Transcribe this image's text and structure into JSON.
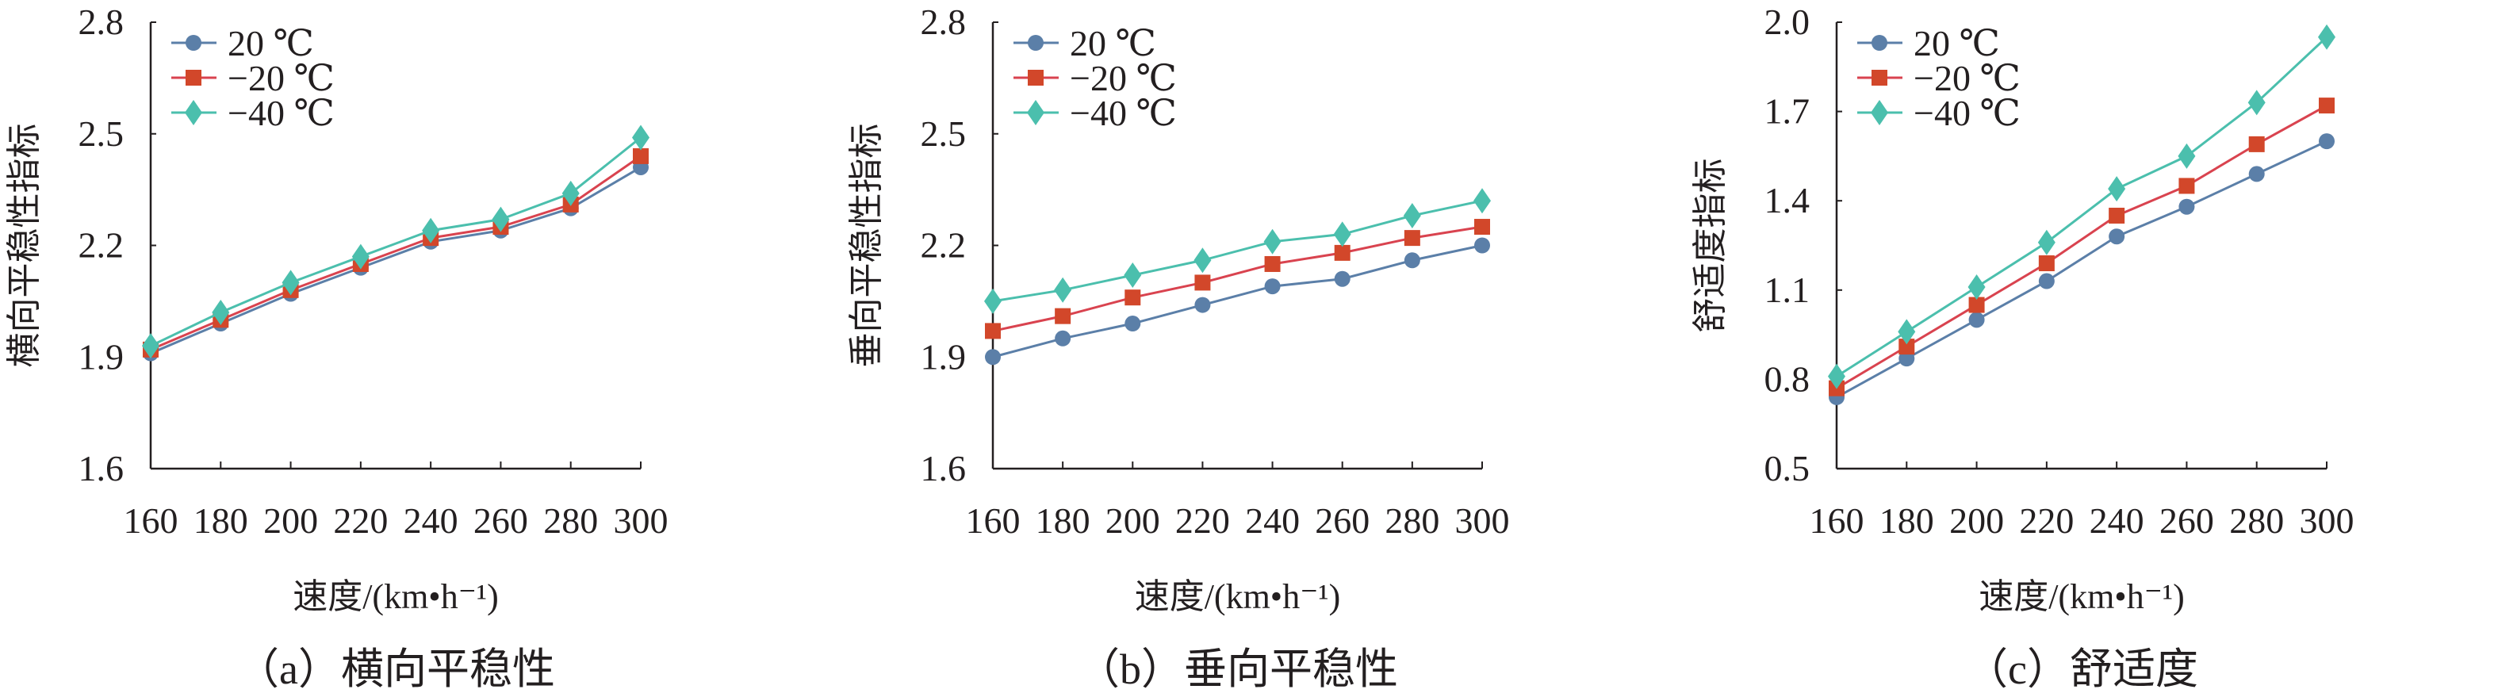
{
  "chart_data": [
    {
      "type": "line",
      "caption": "（a）横向平稳性",
      "xlabel": "速度/(km•h⁻¹)",
      "ylabel": "横向平稳性指标",
      "x": [
        160,
        180,
        200,
        220,
        240,
        260,
        280,
        300
      ],
      "xticks": [
        "160",
        "180",
        "200",
        "220",
        "240",
        "260",
        "280",
        "300"
      ],
      "ylim": [
        1.6,
        2.8
      ],
      "yticks": [
        "1.6",
        "1.9",
        "2.2",
        "2.5",
        "2.8"
      ],
      "legend_position": "top-left",
      "grid": false,
      "series": [
        {
          "name": "20 ℃",
          "color": "#5b7fa8",
          "marker": "circle",
          "values": [
            1.91,
            1.99,
            2.07,
            2.14,
            2.21,
            2.24,
            2.3,
            2.41
          ]
        },
        {
          "name": "−20 ℃",
          "color": "#d9434f",
          "marker_color": "#d2472a",
          "marker": "square",
          "values": [
            1.92,
            2.0,
            2.08,
            2.15,
            2.22,
            2.25,
            2.31,
            2.44
          ]
        },
        {
          "name": "−40 ℃",
          "color": "#4bbfad",
          "marker": "diamond",
          "values": [
            1.93,
            2.02,
            2.1,
            2.17,
            2.24,
            2.27,
            2.34,
            2.49
          ]
        }
      ]
    },
    {
      "type": "line",
      "caption": "（b）垂向平稳性",
      "xlabel": "速度/(km•h⁻¹)",
      "ylabel": "垂向平稳性指标",
      "x": [
        160,
        180,
        200,
        220,
        240,
        260,
        280,
        300
      ],
      "xticks": [
        "160",
        "180",
        "200",
        "220",
        "240",
        "260",
        "280",
        "300"
      ],
      "ylim": [
        1.6,
        2.8
      ],
      "yticks": [
        "1.6",
        "1.9",
        "2.2",
        "2.5",
        "2.8"
      ],
      "legend_position": "top-left",
      "grid": false,
      "series": [
        {
          "name": "20 ℃",
          "color": "#5b7fa8",
          "marker": "circle",
          "values": [
            1.9,
            1.95,
            1.99,
            2.04,
            2.09,
            2.11,
            2.16,
            2.2
          ]
        },
        {
          "name": "−20 ℃",
          "color": "#d9434f",
          "marker_color": "#d2472a",
          "marker": "square",
          "values": [
            1.97,
            2.01,
            2.06,
            2.1,
            2.15,
            2.18,
            2.22,
            2.25
          ]
        },
        {
          "name": "−40 ℃",
          "color": "#4bbfad",
          "marker": "diamond",
          "values": [
            2.05,
            2.08,
            2.12,
            2.16,
            2.21,
            2.23,
            2.28,
            2.32
          ]
        }
      ]
    },
    {
      "type": "line",
      "caption": "（c）舒适度",
      "xlabel": "速度/(km•h⁻¹)",
      "ylabel": "舒适度指标",
      "x": [
        160,
        180,
        200,
        220,
        240,
        260,
        280,
        300
      ],
      "xticks": [
        "160",
        "180",
        "200",
        "220",
        "240",
        "260",
        "280",
        "300"
      ],
      "ylim": [
        0.5,
        2.0
      ],
      "yticks": [
        "0.5",
        "0.8",
        "1.1",
        "1.4",
        "1.7",
        "2.0"
      ],
      "legend_position": "top-left",
      "grid": false,
      "series": [
        {
          "name": "20 ℃",
          "color": "#5b7fa8",
          "marker": "circle",
          "values": [
            0.74,
            0.87,
            1.0,
            1.13,
            1.28,
            1.38,
            1.49,
            1.6
          ]
        },
        {
          "name": "−20 ℃",
          "color": "#d9434f",
          "marker_color": "#d2472a",
          "marker": "square",
          "values": [
            0.77,
            0.91,
            1.05,
            1.19,
            1.35,
            1.45,
            1.59,
            1.72
          ]
        },
        {
          "name": "−40 ℃",
          "color": "#4bbfad",
          "marker": "diamond",
          "values": [
            0.81,
            0.96,
            1.11,
            1.26,
            1.44,
            1.55,
            1.73,
            1.95
          ]
        }
      ]
    }
  ]
}
